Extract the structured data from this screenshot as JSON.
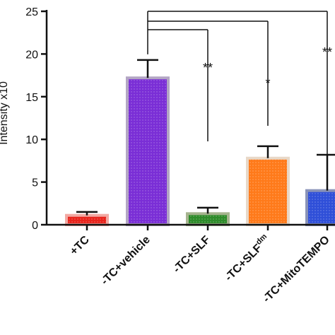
{
  "chart_data": {
    "type": "bar",
    "categories": [
      "+TC",
      "-TC+vehicle",
      "-TC+SLF",
      "-TC+SLF",
      "-TC+MitoTEMPO"
    ],
    "category_superscripts": [
      "",
      "",
      "",
      "dm",
      ""
    ],
    "values": [
      1.1,
      17.2,
      1.3,
      7.8,
      4.0
    ],
    "errors": [
      0.4,
      2.1,
      0.7,
      1.4,
      4.2
    ],
    "colors": [
      "#e8241c",
      "#7a2ed6",
      "#2e8b2a",
      "#ff7a1a",
      "#2f4fd8"
    ],
    "border_colors": [
      "#f2a9a3",
      "#b3a6c4",
      "#a6b48f",
      "#e8d8c8",
      "#8a93b8"
    ],
    "ylabel": "Intensity x10",
    "ylim": [
      0,
      25
    ],
    "yticks": [
      0,
      5,
      10,
      15,
      20,
      25
    ],
    "significance": [
      {
        "target": 2,
        "label": "**"
      },
      {
        "target": 3,
        "label": "*"
      },
      {
        "target": 4,
        "label": "**"
      }
    ],
    "reference_category": 1,
    "grid": false,
    "legend": "none"
  }
}
